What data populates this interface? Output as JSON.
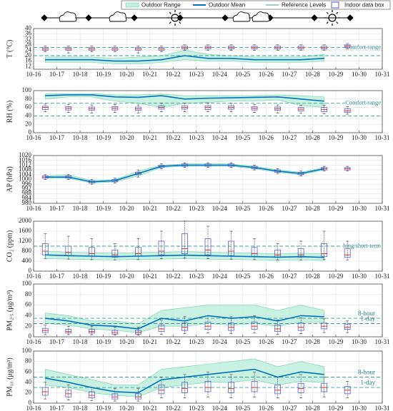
{
  "legend": [
    {
      "name": "Outdoor Range",
      "color": "#bfeedd"
    },
    {
      "name": "Outdoor Mean",
      "color": "#0072bd"
    },
    {
      "name": "Reference Levels",
      "color": "#3a9e96"
    },
    {
      "name": "Indoor data box",
      "color": "#5b5bd6"
    }
  ],
  "x_axis": {
    "xlim": [
      0,
      15
    ],
    "x": [
      0.5,
      1.5,
      2.5,
      3.5,
      4.5,
      5.5,
      6.5,
      7.5,
      8.5,
      9.5,
      10.5,
      11.5,
      12.5,
      13.5
    ],
    "xticks": [
      {
        "value": 0,
        "label": "10-16"
      },
      {
        "value": 1,
        "label": "10-17"
      },
      {
        "value": 2,
        "label": "10-18"
      },
      {
        "value": 3,
        "label": "10-19"
      },
      {
        "value": 4,
        "label": "10-20"
      },
      {
        "value": 5,
        "label": "10-21"
      },
      {
        "value": 6,
        "label": "10-22"
      },
      {
        "value": 7,
        "label": "10-23"
      },
      {
        "value": 8,
        "label": "10-24"
      },
      {
        "value": 9,
        "label": "10-25"
      },
      {
        "value": 10,
        "label": "10-26"
      },
      {
        "value": 11,
        "label": "10-27"
      },
      {
        "value": 12,
        "label": "10-28"
      },
      {
        "value": 13,
        "label": "10-29"
      },
      {
        "value": 14,
        "label": "10-30"
      },
      {
        "value": 15,
        "label": "10-31"
      }
    ]
  },
  "chart_data": [
    {
      "type": "box",
      "ylabel": "T (°C)",
      "ylim": [
        10,
        40
      ],
      "yticks": [
        12,
        16,
        20,
        24,
        28,
        32,
        36,
        40
      ],
      "reference_lines": [
        20,
        26
      ],
      "annotation": "Comfort range",
      "outdoor_mean": [
        17,
        17,
        17,
        16,
        16,
        17,
        20,
        18,
        18,
        17,
        17,
        17,
        18,
        null
      ],
      "outdoor_low": [
        15,
        15,
        15,
        14,
        14,
        15,
        17,
        16,
        16,
        15,
        15,
        15,
        16,
        null
      ],
      "outdoor_high": [
        19,
        19,
        19,
        18,
        19,
        20,
        24,
        21,
        20,
        19,
        19,
        19,
        21,
        null
      ],
      "q1": [
        24,
        24,
        24,
        24,
        24,
        24,
        25,
        25,
        25,
        25,
        25,
        25,
        25,
        26
      ],
      "median": [
        25,
        25,
        25,
        25,
        25,
        25,
        26,
        26,
        26,
        26,
        26,
        26,
        26,
        27
      ],
      "q3": [
        26,
        26,
        26,
        26,
        26,
        26,
        27,
        27,
        27,
        27,
        27,
        27,
        27,
        28
      ],
      "whisker_low": [
        23,
        22,
        23,
        23,
        22,
        23,
        24,
        24,
        24,
        24,
        24,
        24,
        24,
        25
      ],
      "whisker_high": [
        27,
        27,
        27,
        27,
        27,
        27,
        28,
        28,
        28,
        28,
        28,
        28,
        28,
        29
      ]
    },
    {
      "type": "box",
      "ylabel": "RH (%)",
      "ylim": [
        0,
        100
      ],
      "yticks": [
        0,
        20,
        40,
        60,
        80,
        100
      ],
      "reference_lines": [
        40,
        70
      ],
      "annotation": "Comfort range",
      "outdoor_mean": [
        88,
        90,
        90,
        85,
        84,
        88,
        80,
        82,
        83,
        84,
        85,
        80,
        75,
        null
      ],
      "outdoor_low": [
        80,
        85,
        85,
        75,
        70,
        60,
        70,
        72,
        75,
        75,
        78,
        65,
        60,
        null
      ],
      "outdoor_high": [
        92,
        93,
        93,
        90,
        90,
        92,
        88,
        88,
        88,
        88,
        90,
        88,
        85,
        null
      ],
      "q1": [
        55,
        54,
        53,
        54,
        53,
        56,
        56,
        55,
        56,
        54,
        53,
        52,
        50,
        48
      ],
      "median": [
        60,
        58,
        57,
        58,
        57,
        60,
        60,
        60,
        60,
        58,
        57,
        56,
        55,
        52
      ],
      "q3": [
        63,
        62,
        61,
        62,
        61,
        64,
        64,
        64,
        64,
        62,
        61,
        60,
        60,
        57
      ],
      "whisker_low": [
        50,
        48,
        47,
        48,
        47,
        50,
        50,
        50,
        50,
        48,
        47,
        46,
        45,
        44
      ],
      "whisker_high": [
        68,
        67,
        66,
        67,
        66,
        70,
        70,
        70,
        70,
        67,
        66,
        65,
        65,
        62
      ]
    },
    {
      "type": "box",
      "ylabel": "AP (hPa)",
      "ylim": [
        980,
        1020
      ],
      "yticks": [
        980,
        984,
        988,
        992,
        996,
        1000,
        1004,
        1008,
        1012,
        1016,
        1020
      ],
      "reference_lines": [],
      "annotation": null,
      "outdoor_mean": [
        1002,
        1002,
        998,
        999,
        1005,
        1011,
        1012,
        1012,
        1012,
        1010,
        1007,
        1005,
        1009,
        null
      ],
      "outdoor_low": [
        1001,
        1001,
        997,
        998,
        1003,
        1010,
        1011,
        1011,
        1011,
        1009,
        1006,
        1004,
        1008,
        null
      ],
      "outdoor_high": [
        1003,
        1004,
        999,
        1000,
        1007,
        1012,
        1013,
        1013,
        1013,
        1011,
        1008,
        1006,
        1010,
        null
      ],
      "q1": [
        1001,
        1001,
        997,
        998,
        1004,
        1010,
        1011,
        1011,
        1011,
        1009,
        1006,
        1004,
        1008,
        1008
      ],
      "median": [
        1002,
        1002,
        998,
        999,
        1005,
        1011,
        1012,
        1012,
        1012,
        1010,
        1007,
        1005,
        1009,
        1009
      ],
      "q3": [
        1003,
        1003,
        999,
        1000,
        1006,
        1012,
        1013,
        1013,
        1013,
        1011,
        1008,
        1006,
        1010,
        1010
      ],
      "whisker_low": [
        1000,
        1000,
        996,
        997,
        1002,
        1009,
        1010,
        1010,
        1010,
        1008,
        1005,
        1003,
        1007,
        1007
      ],
      "whisker_high": [
        1004,
        1004,
        1000,
        1001,
        1008,
        1013,
        1014,
        1014,
        1014,
        1012,
        1009,
        1007,
        1011,
        1011
      ]
    },
    {
      "type": "box",
      "ylabel": "CO₂ (ppm)",
      "ylim": [
        0,
        2000
      ],
      "yticks": [
        0,
        400,
        800,
        1200,
        1600,
        2000
      ],
      "reference_lines": [
        1000
      ],
      "annotation": "long/short-term",
      "outdoor_mean": [
        650,
        620,
        600,
        580,
        600,
        620,
        640,
        620,
        600,
        580,
        560,
        580,
        550,
        null
      ],
      "outdoor_low": [
        500,
        480,
        460,
        450,
        470,
        480,
        500,
        480,
        470,
        450,
        440,
        450,
        430,
        null
      ],
      "outdoor_high": [
        800,
        760,
        740,
        720,
        740,
        760,
        780,
        760,
        740,
        720,
        700,
        720,
        700,
        null
      ],
      "q1": [
        650,
        620,
        600,
        560,
        600,
        650,
        700,
        650,
        620,
        580,
        560,
        560,
        580,
        550
      ],
      "median": [
        800,
        750,
        700,
        650,
        700,
        800,
        900,
        850,
        800,
        700,
        650,
        650,
        700,
        650
      ],
      "q3": [
        1100,
        1000,
        950,
        850,
        950,
        1200,
        1500,
        1300,
        1200,
        950,
        850,
        900,
        1100,
        900
      ],
      "whisker_low": [
        500,
        480,
        460,
        450,
        460,
        500,
        520,
        500,
        480,
        460,
        450,
        450,
        460,
        450
      ],
      "whisker_high": [
        1500,
        1400,
        1300,
        1100,
        1300,
        1600,
        2000,
        1800,
        1600,
        1300,
        1100,
        1200,
        1600,
        1200
      ]
    },
    {
      "type": "box",
      "ylabel": "PM₂.₅ (μg/m³)",
      "ylim": [
        0,
        100
      ],
      "yticks": [
        0,
        20,
        40,
        60,
        80,
        100
      ],
      "reference_lines": [
        35,
        25
      ],
      "annotation_labels": [
        "8-hour",
        "1-day"
      ],
      "outdoor_mean": [
        35,
        30,
        22,
        20,
        15,
        35,
        30,
        40,
        35,
        38,
        30,
        40,
        38,
        null
      ],
      "outdoor_low": [
        25,
        22,
        15,
        12,
        8,
        20,
        20,
        25,
        22,
        25,
        20,
        28,
        28,
        null
      ],
      "outdoor_high": [
        45,
        40,
        30,
        30,
        25,
        50,
        55,
        60,
        60,
        60,
        50,
        60,
        50,
        null
      ],
      "q1": [
        8,
        7,
        7,
        5,
        5,
        10,
        12,
        14,
        12,
        14,
        10,
        12,
        15,
        14
      ],
      "median": [
        12,
        10,
        10,
        8,
        8,
        15,
        18,
        20,
        18,
        20,
        15,
        18,
        20,
        18
      ],
      "q3": [
        16,
        14,
        14,
        12,
        12,
        22,
        26,
        28,
        26,
        28,
        22,
        26,
        26,
        24
      ],
      "whisker_low": [
        4,
        4,
        4,
        3,
        3,
        5,
        6,
        7,
        6,
        7,
        5,
        6,
        8,
        8
      ],
      "whisker_high": [
        22,
        20,
        20,
        18,
        18,
        32,
        38,
        40,
        38,
        40,
        32,
        36,
        34,
        30
      ]
    },
    {
      "type": "box",
      "ylabel": "PM₁₀ (μg/m³)",
      "ylim": [
        0,
        100
      ],
      "yticks": [
        0,
        20,
        40,
        60,
        80,
        100
      ],
      "reference_lines": [
        50,
        30
      ],
      "annotation_labels": [
        "8-hour",
        "1-day"
      ],
      "outdoor_mean": [
        48,
        40,
        30,
        22,
        20,
        45,
        50,
        55,
        60,
        65,
        50,
        60,
        55,
        null
      ],
      "outdoor_low": [
        35,
        30,
        20,
        15,
        12,
        30,
        35,
        40,
        40,
        45,
        35,
        42,
        40,
        null
      ],
      "outdoor_high": [
        65,
        55,
        45,
        35,
        35,
        65,
        70,
        75,
        80,
        85,
        70,
        80,
        70,
        null
      ],
      "q1": [
        15,
        12,
        10,
        8,
        8,
        18,
        20,
        22,
        20,
        22,
        18,
        20,
        22,
        18
      ],
      "median": [
        22,
        18,
        15,
        12,
        12,
        25,
        28,
        30,
        28,
        30,
        25,
        28,
        30,
        25
      ],
      "q3": [
        30,
        25,
        22,
        18,
        18,
        35,
        40,
        42,
        40,
        42,
        35,
        38,
        38,
        32
      ],
      "whisker_low": [
        8,
        6,
        5,
        4,
        4,
        10,
        10,
        12,
        10,
        12,
        10,
        10,
        12,
        10
      ],
      "whisker_high": [
        40,
        35,
        30,
        28,
        28,
        50,
        55,
        60,
        55,
        60,
        50,
        55,
        50,
        42
      ]
    }
  ]
}
